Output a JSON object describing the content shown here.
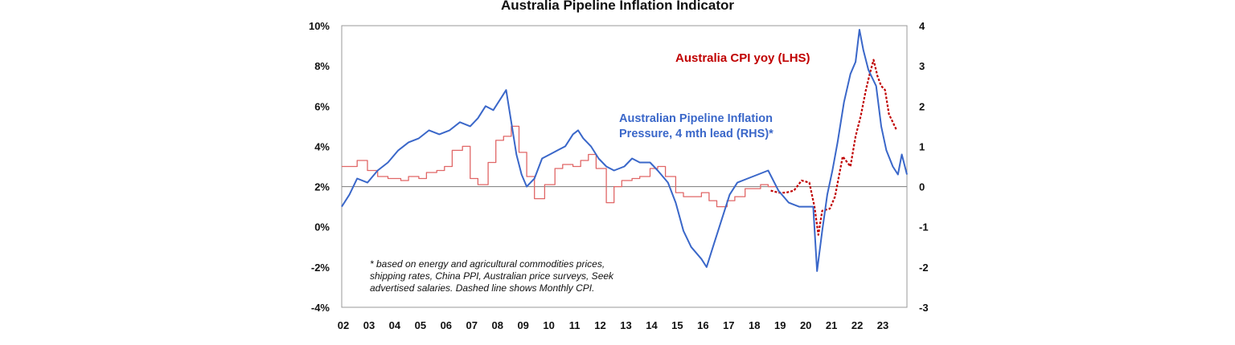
{
  "chart_data": {
    "type": "line",
    "title": "Australia Pipeline Inflation Indicator",
    "x_tick_labels": [
      "02",
      "03",
      "04",
      "05",
      "06",
      "07",
      "08",
      "09",
      "10",
      "11",
      "12",
      "13",
      "14",
      "15",
      "16",
      "17",
      "18",
      "19",
      "20",
      "21",
      "22",
      "23"
    ],
    "y_left": {
      "range": [
        -4,
        10
      ],
      "tick_labels": [
        "10%",
        "8%",
        "6%",
        "4%",
        "2%",
        "0%",
        "-2%",
        "-4%"
      ],
      "tick_values": [
        10,
        8,
        6,
        4,
        2,
        0,
        -2,
        -4
      ]
    },
    "y_right": {
      "range": [
        -3,
        4
      ],
      "tick_labels": [
        "4",
        "3",
        "2",
        "1",
        "0",
        "-1",
        "-2",
        "-3"
      ],
      "tick_values": [
        4,
        3,
        2,
        1,
        0,
        -1,
        -2,
        -3
      ]
    },
    "zero_line": {
      "axis": "right",
      "value": 0
    },
    "grid": false,
    "series": [
      {
        "name": "Australia CPI yoy (LHS)",
        "axis": "left",
        "color": "#e06666",
        "style": "step",
        "x": [
          2002.0,
          2002.6,
          2003.0,
          2003.4,
          2003.8,
          2004.3,
          2004.6,
          2005.0,
          2005.3,
          2005.7,
          2006.0,
          2006.3,
          2006.7,
          2007.0,
          2007.3,
          2007.7,
          2008.0,
          2008.3,
          2008.6,
          2008.9,
          2009.2,
          2009.5,
          2009.9,
          2010.3,
          2010.6,
          2011.0,
          2011.3,
          2011.6,
          2011.9,
          2012.3,
          2012.6,
          2012.9,
          2013.3,
          2013.6,
          2014.0,
          2014.3,
          2014.6,
          2015.0,
          2015.3,
          2015.6,
          2016.0,
          2016.3,
          2016.6,
          2017.0,
          2017.3,
          2017.7,
          2018.0,
          2018.3,
          2018.6
        ],
        "values": [
          3.0,
          3.3,
          2.8,
          2.5,
          2.4,
          2.3,
          2.5,
          2.4,
          2.7,
          2.8,
          3.0,
          3.8,
          4.0,
          2.4,
          2.1,
          3.2,
          4.3,
          4.5,
          5.0,
          3.7,
          2.5,
          1.4,
          2.1,
          2.9,
          3.1,
          3.0,
          3.3,
          3.6,
          2.9,
          1.2,
          2.0,
          2.3,
          2.4,
          2.5,
          2.9,
          3.0,
          2.5,
          1.7,
          1.5,
          1.5,
          1.7,
          1.3,
          1.0,
          1.3,
          1.5,
          1.9,
          1.9,
          2.1,
          2.0
        ],
        "description": "quarterly series, stepped"
      },
      {
        "name": "Monthly CPI (dashed)",
        "axis": "left",
        "color": "#c00000",
        "style": "dashed",
        "x": [
          2018.7,
          2019.0,
          2019.3,
          2019.6,
          2019.9,
          2020.2,
          2020.4,
          2020.55,
          2020.7,
          2021.0,
          2021.2,
          2021.5,
          2021.8,
          2022.0,
          2022.2,
          2022.4,
          2022.55,
          2022.7,
          2022.85,
          2023.0,
          2023.15,
          2023.3,
          2023.45,
          2023.6
        ],
        "values": [
          1.8,
          1.7,
          1.7,
          1.8,
          2.3,
          2.2,
          1.0,
          -0.4,
          0.8,
          0.9,
          1.5,
          3.5,
          3.0,
          4.5,
          5.5,
          6.8,
          7.6,
          8.3,
          7.5,
          7.0,
          6.8,
          5.6,
          5.2,
          4.8
        ]
      },
      {
        "name": "Australian Pipeline Inflation Pressure, 4 mth lead (RHS)*",
        "axis": "right",
        "color": "#3a67c9",
        "style": "solid",
        "x": [
          2002.0,
          2002.3,
          2002.6,
          2003.0,
          2003.4,
          2003.8,
          2004.2,
          2004.6,
          2005.0,
          2005.4,
          2005.8,
          2006.2,
          2006.6,
          2007.0,
          2007.3,
          2007.6,
          2007.9,
          2008.2,
          2008.4,
          2008.6,
          2008.8,
          2009.0,
          2009.2,
          2009.5,
          2009.8,
          2010.1,
          2010.4,
          2010.7,
          2011.0,
          2011.2,
          2011.4,
          2011.7,
          2012.0,
          2012.3,
          2012.6,
          2013.0,
          2013.3,
          2013.6,
          2014.0,
          2014.3,
          2014.7,
          2015.0,
          2015.3,
          2015.6,
          2016.0,
          2016.2,
          2016.5,
          2016.8,
          2017.1,
          2017.4,
          2017.8,
          2018.2,
          2018.6,
          2019.0,
          2019.4,
          2019.8,
          2020.1,
          2020.35,
          2020.5,
          2020.7,
          2020.9,
          2021.1,
          2021.3,
          2021.55,
          2021.8,
          2022.0,
          2022.15,
          2022.3,
          2022.5,
          2022.8,
          2023.0,
          2023.2,
          2023.45,
          2023.65,
          2023.8,
          2024.0
        ],
        "values": [
          -0.5,
          -0.2,
          0.2,
          0.1,
          0.4,
          0.6,
          0.9,
          1.1,
          1.2,
          1.4,
          1.3,
          1.4,
          1.6,
          1.5,
          1.7,
          2.0,
          1.9,
          2.2,
          2.4,
          1.6,
          0.8,
          0.3,
          0.0,
          0.2,
          0.7,
          0.8,
          0.9,
          1.0,
          1.3,
          1.4,
          1.2,
          1.0,
          0.7,
          0.5,
          0.4,
          0.5,
          0.7,
          0.6,
          0.6,
          0.4,
          0.1,
          -0.4,
          -1.1,
          -1.5,
          -1.8,
          -2.0,
          -1.4,
          -0.8,
          -0.2,
          0.1,
          0.2,
          0.3,
          0.4,
          -0.1,
          -0.4,
          -0.5,
          -0.5,
          -0.5,
          -2.1,
          -1.1,
          -0.2,
          0.4,
          1.1,
          2.1,
          2.8,
          3.1,
          3.9,
          3.4,
          2.9,
          2.5,
          1.5,
          0.9,
          0.5,
          0.3,
          0.8,
          0.3
        ]
      }
    ],
    "annotations": {
      "cpi_label": "Australia CPI yoy (LHS)",
      "pipeline_label_line1": "Australian Pipeline Inflation",
      "pipeline_label_line2": "Pressure, 4 mth lead (RHS)*",
      "footnote_line1": "* based on energy and agricultural commodities prices,",
      "footnote_line2": "shipping rates, China PPI, Australian price surveys, Seek",
      "footnote_line3": "advertised salaries. Dashed line shows Monthly CPI."
    }
  }
}
